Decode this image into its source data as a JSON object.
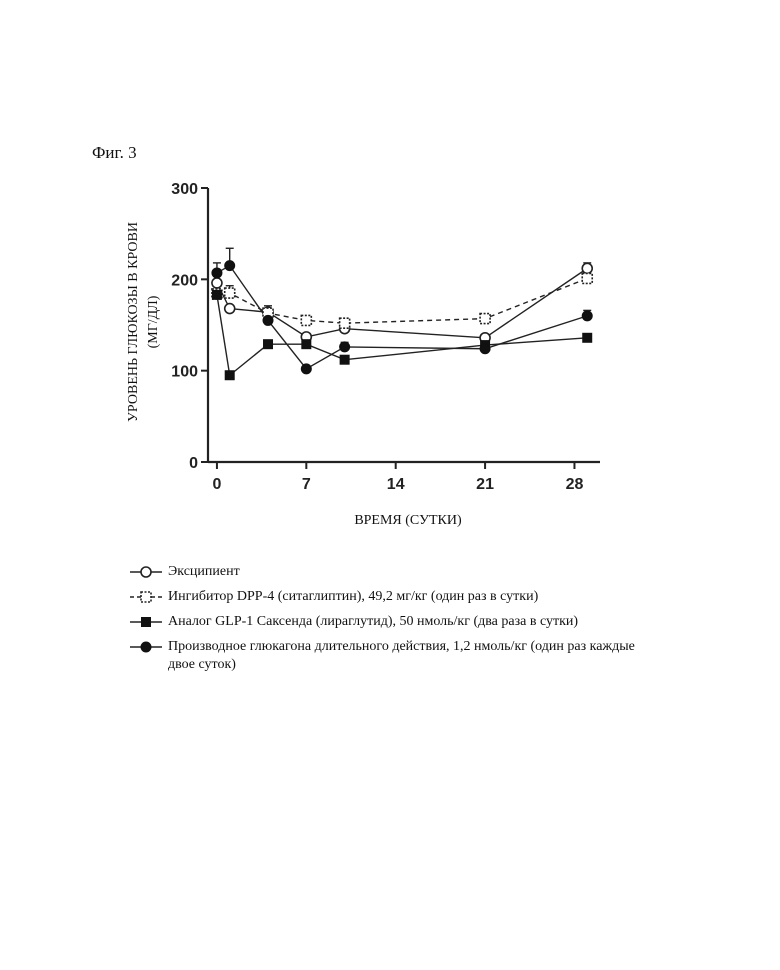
{
  "figure_label": "Фиг. 3",
  "chart_data": {
    "type": "line",
    "ylabel_line1": "УРОВЕНЬ ГЛЮКОЗЫ В КРОВИ",
    "ylabel_line2": "(МГ/ДЛ)",
    "xlabel": "ВРЕМЯ (СУТКИ)",
    "ylim": [
      0,
      300
    ],
    "xlim": [
      -0.7,
      30
    ],
    "yticks": [
      0,
      100,
      200,
      300
    ],
    "xticks": [
      0,
      7,
      14,
      21,
      28
    ],
    "series": [
      {
        "name": "Эксципиент",
        "marker": "open-circle",
        "line": "solid",
        "points": [
          [
            0,
            196
          ],
          [
            1,
            168
          ],
          [
            4,
            164
          ],
          [
            7,
            137
          ],
          [
            10,
            146
          ],
          [
            21,
            136
          ],
          [
            29,
            212
          ]
        ],
        "errors": [
          0,
          0,
          0,
          0,
          0,
          0,
          6
        ]
      },
      {
        "name": "Ингибитор DPP-4 (ситаглиптин), 49,2 мг/кг (один раз в сутки)",
        "marker": "open-square",
        "line": "dashed",
        "points": [
          [
            0,
            184
          ],
          [
            1,
            185
          ],
          [
            4,
            163
          ],
          [
            7,
            155
          ],
          [
            10,
            152
          ],
          [
            21,
            157
          ],
          [
            29,
            201
          ]
        ],
        "errors": [
          0,
          8,
          8,
          0,
          0,
          0,
          6
        ]
      },
      {
        "name": "Аналог GLP-1 Саксенда (лираглутид), 50 нмоль/кг (два раза в сутки)",
        "marker": "filled-square",
        "line": "solid",
        "points": [
          [
            0,
            183
          ],
          [
            1,
            95
          ],
          [
            4,
            129
          ],
          [
            7,
            129
          ],
          [
            10,
            112
          ],
          [
            21,
            128
          ],
          [
            29,
            136
          ]
        ],
        "errors": [
          0,
          0,
          0,
          0,
          0,
          0,
          0
        ]
      },
      {
        "name": "Производное глюкагона длительного действия, 1,2 нмоль/кг (один раз каждые двое суток)",
        "marker": "filled-circle",
        "line": "solid",
        "points": [
          [
            0,
            207
          ],
          [
            1,
            215
          ],
          [
            4,
            155
          ],
          [
            7,
            102
          ],
          [
            10,
            126
          ],
          [
            21,
            124
          ],
          [
            29,
            160
          ]
        ],
        "errors": [
          11,
          19,
          0,
          0,
          5,
          0,
          6
        ]
      }
    ],
    "grid": false,
    "legend_position": "below"
  },
  "legend": [
    {
      "marker": "open-circle",
      "line": "solid",
      "text": "Эксципиент"
    },
    {
      "marker": "open-square",
      "line": "dashed",
      "text": "Ингибитор DPP-4 (ситаглиптин), 49,2 мг/кг (один раз в сутки)"
    },
    {
      "marker": "filled-square",
      "line": "solid",
      "text": "Аналог GLP-1 Саксенда (лираглутид), 50 нмоль/кг (два раза в сутки)"
    },
    {
      "marker": "filled-circle",
      "line": "solid",
      "text": "Производное глюкагона длительного действия, 1,2 нмоль/кг (один раз каждые двое суток)"
    }
  ]
}
